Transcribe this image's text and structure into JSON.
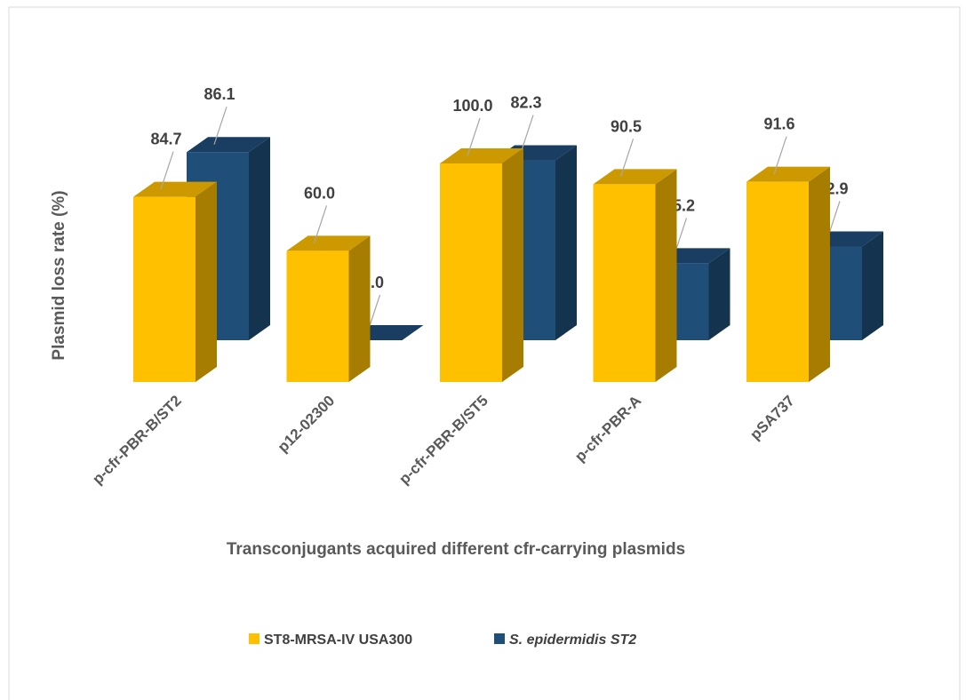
{
  "chart_data": {
    "type": "bar3d",
    "x_label": "Transconjugants acquired different cfr-carrying plasmids",
    "y_label": "Plasmid loss rate (%)",
    "categories": [
      "p-cfr-PBR-B/ST2",
      "p12-02300",
      "p-cfr-PBR-B/ST5",
      "p-cfr-PBR-A",
      "pSA737"
    ],
    "series": [
      {
        "name": "ST8-MRSA-IV USA300",
        "color": "#ffc000",
        "values": [
          84.7,
          60.0,
          100.0,
          90.5,
          91.6
        ],
        "value_labels": [
          "84.7",
          "60.0",
          "100.0",
          "90.5",
          "91.6"
        ]
      },
      {
        "name": "S. epidermidis ST2",
        "color": "#1f4e79",
        "values": [
          86.1,
          0.0,
          82.3,
          35.2,
          42.9
        ],
        "value_labels": [
          "86.1",
          "0.0",
          "82.3",
          "35.2",
          "42.9"
        ]
      }
    ],
    "legend": "bottom"
  }
}
